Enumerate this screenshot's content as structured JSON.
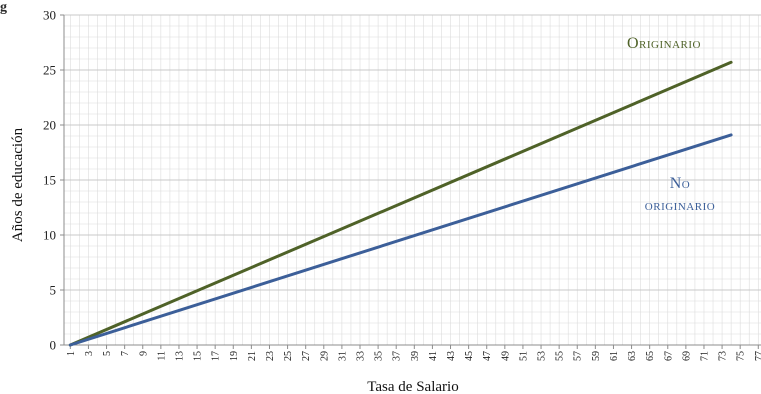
{
  "figure_label": "g",
  "chart_data": {
    "type": "line",
    "title": "",
    "xlabel": "Tasa de Salario",
    "ylabel": "Años de educación",
    "xlim": [
      1,
      77
    ],
    "ylim": [
      0,
      30
    ],
    "x_ticks": [
      1,
      3,
      5,
      7,
      9,
      11,
      13,
      15,
      17,
      19,
      21,
      23,
      25,
      27,
      29,
      31,
      33,
      35,
      37,
      39,
      41,
      43,
      45,
      47,
      49,
      51,
      53,
      55,
      57,
      59,
      61,
      63,
      65,
      67,
      69,
      71,
      73,
      75,
      77
    ],
    "y_ticks": [
      0,
      5,
      10,
      15,
      20,
      25,
      30
    ],
    "grid": true,
    "legend": "none",
    "series": [
      {
        "name": "Originario",
        "label_lines": [
          "Originario"
        ],
        "color": "#4f6228",
        "x": [
          1,
          74
        ],
        "y": [
          0,
          25.7
        ]
      },
      {
        "name": "No originario",
        "label_lines": [
          "No",
          "originario"
        ],
        "color": "#3c5f99",
        "x": [
          1,
          74
        ],
        "y": [
          0,
          19.1
        ]
      }
    ]
  }
}
